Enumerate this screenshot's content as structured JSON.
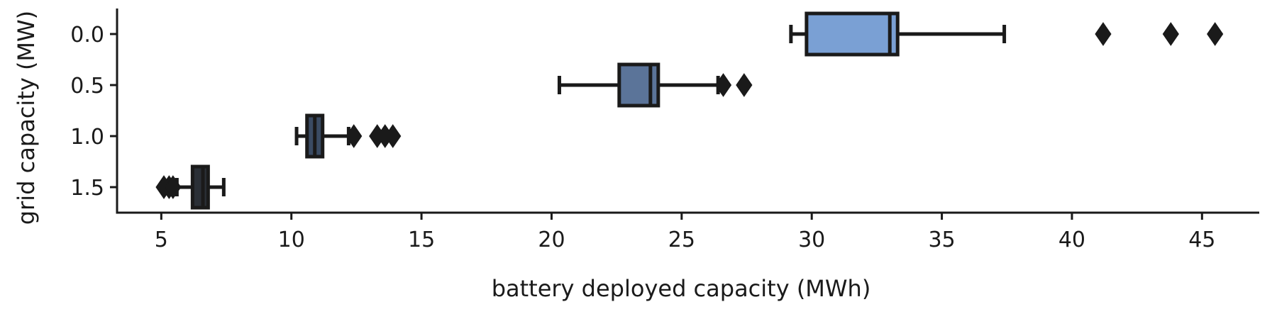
{
  "chart_data": {
    "type": "boxplot",
    "orientation": "horizontal",
    "xlabel": "battery deployed capacity (MWh)",
    "ylabel": "grid capacity (MW)",
    "xlim": [
      3.3,
      47.2
    ],
    "x_ticks": [
      5,
      10,
      15,
      20,
      25,
      30,
      35,
      40,
      45
    ],
    "categories": [
      "0.0",
      "0.5",
      "1.0",
      "1.5"
    ],
    "boxes": [
      {
        "category": "0.0",
        "whisker_low": 29.2,
        "q1": 29.8,
        "median": 33.0,
        "q3": 33.3,
        "whisker_high": 37.4,
        "outliers": [
          41.2,
          43.8,
          45.5
        ],
        "color": "#7aa0d4"
      },
      {
        "category": "0.5",
        "whisker_low": 20.3,
        "q1": 22.6,
        "median": 23.8,
        "q3": 24.1,
        "whisker_high": 26.4,
        "outliers": [
          26.6,
          27.4
        ],
        "color": "#5b7499"
      },
      {
        "category": "1.0",
        "whisker_low": 10.2,
        "q1": 10.6,
        "median": 10.9,
        "q3": 11.2,
        "whisker_high": 12.2,
        "outliers": [
          12.4,
          13.3,
          13.6,
          13.9
        ],
        "color": "#3a4b63"
      },
      {
        "category": "1.5",
        "whisker_low": 5.6,
        "q1": 6.2,
        "median": 6.6,
        "q3": 6.8,
        "whisker_high": 7.4,
        "outliers": [
          5.1,
          5.3,
          5.45
        ],
        "color": "#2a2f36"
      }
    ],
    "grid": false,
    "legend": "none"
  }
}
